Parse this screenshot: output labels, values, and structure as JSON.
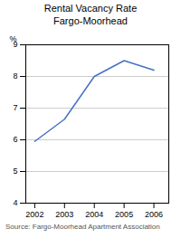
{
  "chart_data": {
    "type": "line",
    "title": "Rental Vacancy Rate\nFargo-Moorhead",
    "ylabel": "%",
    "x": [
      2002,
      2003,
      2004,
      2005,
      2006
    ],
    "values": [
      5.95,
      6.65,
      8.0,
      8.5,
      8.2
    ],
    "color": "#4472c4",
    "xlim": [
      2001.7,
      2006.5
    ],
    "xticks": [
      2002,
      2003,
      2004,
      2005,
      2006
    ],
    "ylim": [
      4,
      9
    ],
    "yticks": [
      4,
      5,
      6,
      7,
      8,
      9
    ],
    "grid": true,
    "source": "Source: Fargo-Moorhead Apartment Association"
  }
}
